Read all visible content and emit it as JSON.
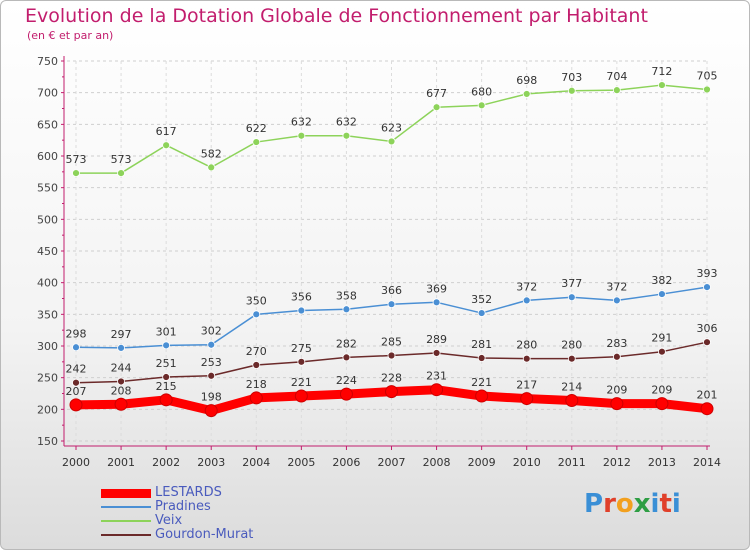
{
  "title": "Evolution de la Dotation Globale de Fonctionnement par Habitant",
  "subtitle": "(en € et par an)",
  "logo_text": "Proxiti",
  "chart_data": {
    "type": "line",
    "title": "Evolution de la Dotation Globale de Fonctionnement par Habitant",
    "subtitle": "(en € et par an)",
    "xlabel": "",
    "ylabel": "",
    "ylim": [
      150,
      750
    ],
    "yticks": [
      150,
      200,
      250,
      300,
      350,
      400,
      450,
      500,
      550,
      600,
      650,
      700,
      750
    ],
    "grid": true,
    "legend_position": "bottom-left",
    "categories": [
      "2000",
      "2001",
      "2002",
      "2003",
      "2004",
      "2005",
      "2006",
      "2007",
      "2008",
      "2009",
      "2010",
      "2011",
      "2012",
      "2013",
      "2014"
    ],
    "series": [
      {
        "name": "LESTARDS",
        "color": "#ff0000",
        "values": [
          207,
          208,
          215,
          198,
          218,
          221,
          224,
          228,
          231,
          221,
          217,
          214,
          209,
          209,
          201
        ]
      },
      {
        "name": "Pradines",
        "color": "#4a8fd4",
        "values": [
          298,
          297,
          301,
          302,
          350,
          356,
          358,
          366,
          369,
          352,
          372,
          377,
          372,
          382,
          393
        ]
      },
      {
        "name": "Veix",
        "color": "#8dd35a",
        "values": [
          573,
          573,
          617,
          582,
          622,
          632,
          632,
          623,
          677,
          680,
          698,
          703,
          704,
          712,
          705
        ]
      },
      {
        "name": "Gourdon-Murat",
        "color": "#6b2a2a",
        "values": [
          242,
          244,
          251,
          253,
          270,
          275,
          282,
          285,
          289,
          281,
          280,
          280,
          283,
          291,
          306
        ]
      }
    ]
  }
}
